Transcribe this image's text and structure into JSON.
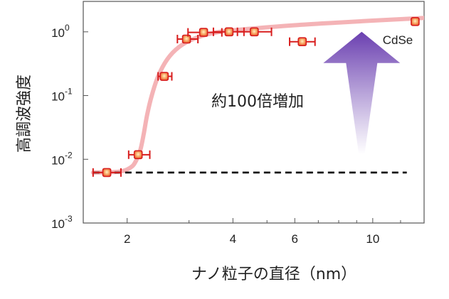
{
  "chart_data": {
    "type": "scatter",
    "title": "",
    "xlabel": "ナノ粒子の直径（nm）",
    "ylabel": "高調波強度",
    "x_scale": "log",
    "y_scale": "log",
    "xlim": [
      1.5,
      14
    ],
    "ylim": [
      0.001,
      3
    ],
    "x_ticks": [
      {
        "value": 2,
        "label": "2"
      },
      {
        "value": 4,
        "label": "4"
      },
      {
        "value": 6,
        "label": "6"
      },
      {
        "value": 10,
        "label": "10"
      }
    ],
    "y_ticks": [
      {
        "value": 0.001,
        "base": "10",
        "exp": "-3"
      },
      {
        "value": 0.01,
        "base": "10",
        "exp": "-2"
      },
      {
        "value": 0.1,
        "base": "10",
        "exp": "-1"
      },
      {
        "value": 1,
        "base": "10",
        "exp": "0"
      }
    ],
    "series": [
      {
        "name": "CdSe",
        "points": [
          {
            "x": 1.75,
            "y": 0.0062,
            "xerr_low": 1.6,
            "xerr_high": 1.92
          },
          {
            "x": 2.15,
            "y": 0.0118,
            "xerr_low": 2.02,
            "xerr_high": 2.32
          },
          {
            "x": 2.55,
            "y": 0.2,
            "xerr_low": 2.45,
            "xerr_high": 2.68
          },
          {
            "x": 2.95,
            "y": 0.77,
            "xerr_low": 2.78,
            "xerr_high": 3.18
          },
          {
            "x": 3.3,
            "y": 0.98,
            "xerr_low": 2.98,
            "xerr_high": 3.72
          },
          {
            "x": 3.9,
            "y": 1.0,
            "xerr_low": 3.52,
            "xerr_high": 4.3
          },
          {
            "x": 4.6,
            "y": 1.0,
            "xerr_low": 4.12,
            "xerr_high": 5.15
          },
          {
            "x": 6.3,
            "y": 0.7,
            "xerr_low": 5.8,
            "xerr_high": 6.85
          },
          {
            "x": 13.2,
            "y": 1.45
          }
        ]
      }
    ],
    "fit_curve": [
      [
        1.6,
        0.0062
      ],
      [
        1.9,
        0.0064
      ],
      [
        2.05,
        0.0075
      ],
      [
        2.12,
        0.0095
      ],
      [
        2.18,
        0.014
      ],
      [
        2.23,
        0.025
      ],
      [
        2.28,
        0.05
      ],
      [
        2.35,
        0.1
      ],
      [
        2.45,
        0.2
      ],
      [
        2.6,
        0.37
      ],
      [
        2.8,
        0.57
      ],
      [
        3.1,
        0.78
      ],
      [
        3.6,
        0.98
      ],
      [
        4.5,
        1.12
      ],
      [
        6,
        1.27
      ],
      [
        8,
        1.4
      ],
      [
        10,
        1.5
      ],
      [
        12,
        1.58
      ],
      [
        14,
        1.65
      ]
    ],
    "baseline": {
      "y": 0.0062,
      "x_from": 1.6,
      "x_to": 12.5
    },
    "annotations": [
      {
        "text": "約100倍増加"
      }
    ],
    "arrow": {
      "x": 9.3,
      "y_from": 0.012,
      "y_to": 1.0
    },
    "colors": {
      "marker_fill": "#f07a3a",
      "marker_edge": "#d81e1e",
      "errorbar": "#d81e1e",
      "fit": "#f4b3b6",
      "baseline": "#000000",
      "arrow_top": "#6a3fb0",
      "arrow_bottom": "#ffffff",
      "frame": "#555555"
    }
  }
}
